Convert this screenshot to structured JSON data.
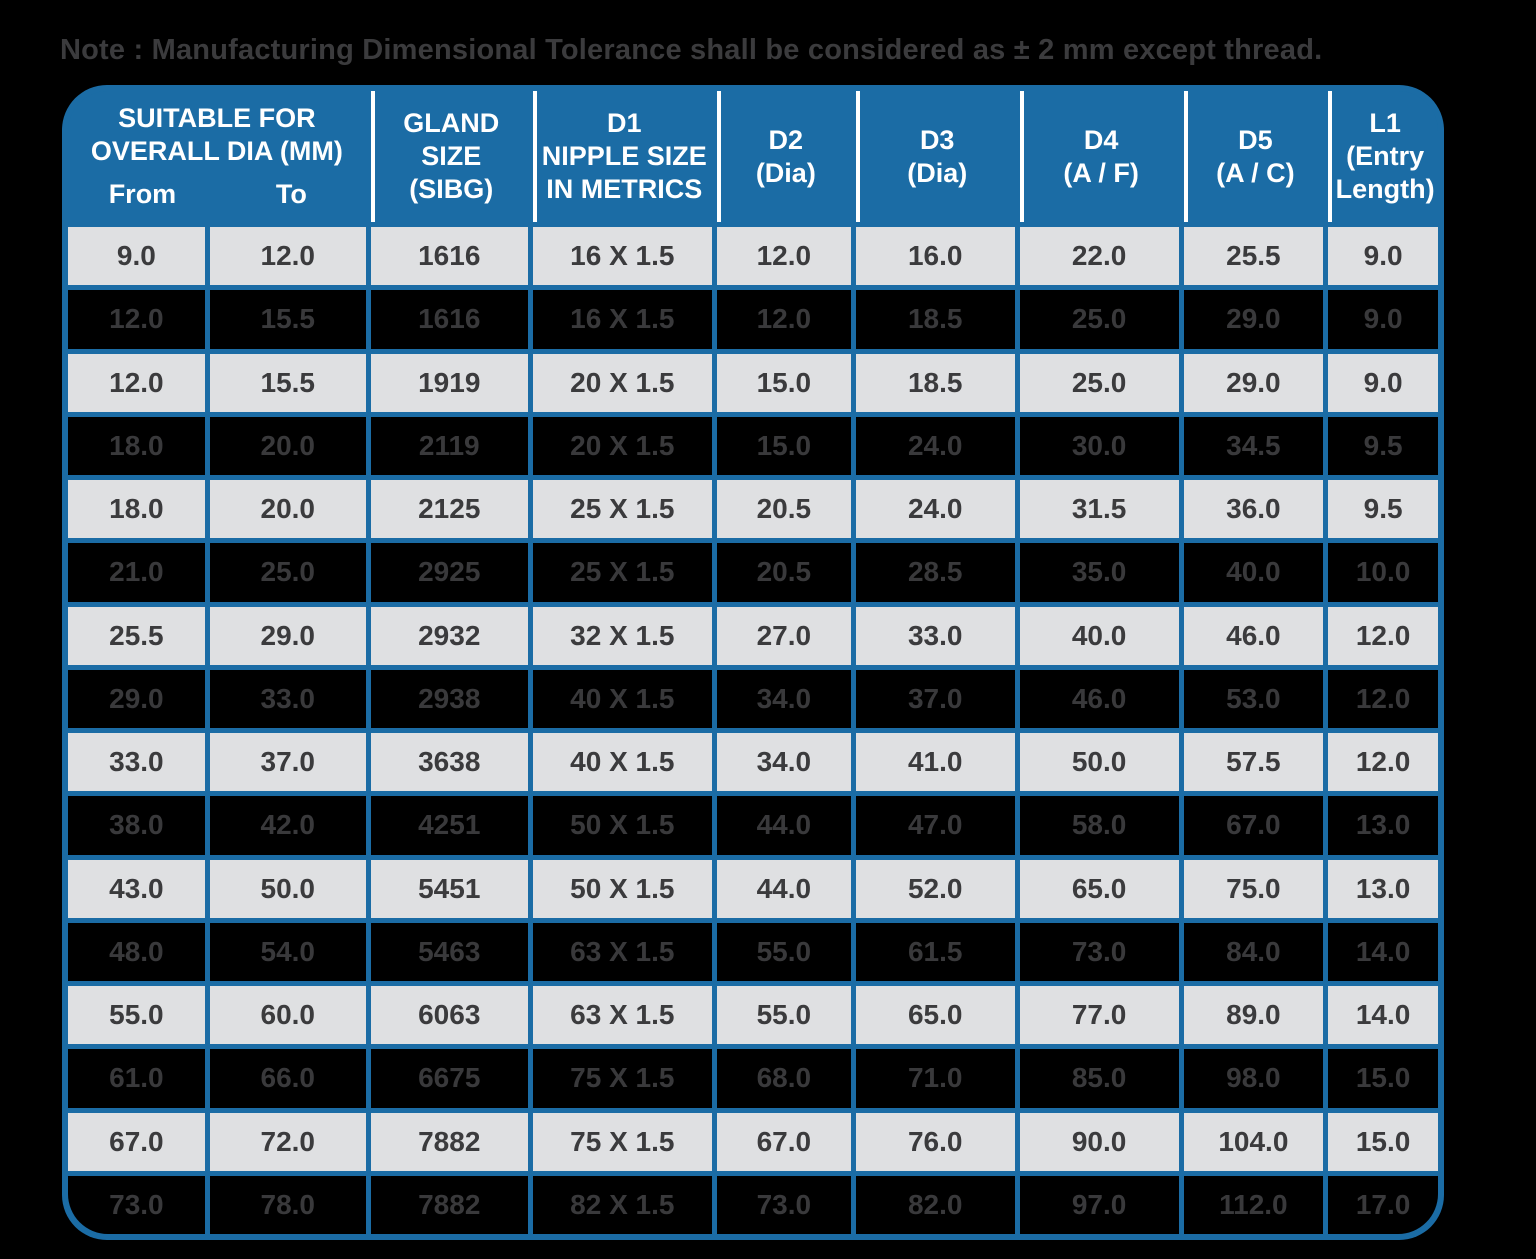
{
  "note": "Note : Manufacturing Dimensional Tolerance shall be considered as ± 2 mm except thread.",
  "colors": {
    "frame_blue": "#1b6ca5",
    "light_row_bg": "#dfe0e2",
    "dark_row_bg": "#000000",
    "header_text": "#ffffff",
    "text": "#3b3b3d",
    "dark_row_text": "#39393b",
    "page_background": "#000000"
  },
  "table": {
    "header": {
      "col1_title": "SUITABLE FOR\nOVERALL DIA (MM)",
      "col1_sub": [
        "From",
        "To"
      ],
      "columns": [
        "GLAND  SIZE\n(SIBG)",
        "D1\nNIPPLE SIZE\nIN METRICS",
        "D2\n(Dia)",
        "D3\n(Dia)",
        "D4\n(A / F)",
        "D5\n(A / C)",
        "L1\n(Entry\nLength)"
      ]
    },
    "rows": [
      [
        "9.0",
        "12.0",
        "1616",
        "16 X 1.5",
        "12.0",
        "16.0",
        "22.0",
        "25.5",
        "9.0"
      ],
      [
        "12.0",
        "15.5",
        "1616",
        "16 X 1.5",
        "12.0",
        "18.5",
        "25.0",
        "29.0",
        "9.0"
      ],
      [
        "12.0",
        "15.5",
        "1919",
        "20 X 1.5",
        "15.0",
        "18.5",
        "25.0",
        "29.0",
        "9.0"
      ],
      [
        "18.0",
        "20.0",
        "2119",
        "20 X 1.5",
        "15.0",
        "24.0",
        "30.0",
        "34.5",
        "9.5"
      ],
      [
        "18.0",
        "20.0",
        "2125",
        "25 X 1.5",
        "20.5",
        "24.0",
        "31.5",
        "36.0",
        "9.5"
      ],
      [
        "21.0",
        "25.0",
        "2925",
        "25 X 1.5",
        "20.5",
        "28.5",
        "35.0",
        "40.0",
        "10.0"
      ],
      [
        "25.5",
        "29.0",
        "2932",
        "32 X 1.5",
        "27.0",
        "33.0",
        "40.0",
        "46.0",
        "12.0"
      ],
      [
        "29.0",
        "33.0",
        "2938",
        "40 X 1.5",
        "34.0",
        "37.0",
        "46.0",
        "53.0",
        "12.0"
      ],
      [
        "33.0",
        "37.0",
        "3638",
        "40 X 1.5",
        "34.0",
        "41.0",
        "50.0",
        "57.5",
        "12.0"
      ],
      [
        "38.0",
        "42.0",
        "4251",
        "50 X 1.5",
        "44.0",
        "47.0",
        "58.0",
        "67.0",
        "13.0"
      ],
      [
        "43.0",
        "50.0",
        "5451",
        "50 X 1.5",
        "44.0",
        "52.0",
        "65.0",
        "75.0",
        "13.0"
      ],
      [
        "48.0",
        "54.0",
        "5463",
        "63 X 1.5",
        "55.0",
        "61.5",
        "73.0",
        "84.0",
        "14.0"
      ],
      [
        "55.0",
        "60.0",
        "6063",
        "63 X 1.5",
        "55.0",
        "65.0",
        "77.0",
        "89.0",
        "14.0"
      ],
      [
        "61.0",
        "66.0",
        "6675",
        "75 X 1.5",
        "68.0",
        "71.0",
        "85.0",
        "98.0",
        "15.0"
      ],
      [
        "67.0",
        "72.0",
        "7882",
        "75 X 1.5",
        "67.0",
        "76.0",
        "90.0",
        "104.0",
        "15.0"
      ],
      [
        "73.0",
        "78.0",
        "7882",
        "82 X 1.5",
        "73.0",
        "82.0",
        "97.0",
        "112.0",
        "17.0"
      ]
    ]
  }
}
